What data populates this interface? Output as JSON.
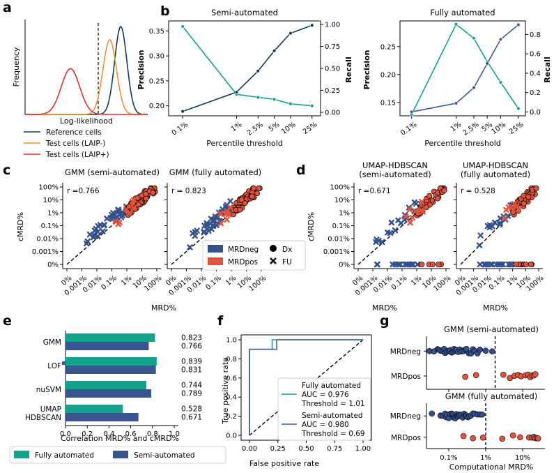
{
  "colors": {
    "teal": "#14a08a",
    "navy": "#0f3c4f",
    "slate": "#3f5a8f",
    "orange": "#f0902e",
    "red": "#e0302e",
    "mrdneg": "#34508a",
    "mrdpos": "#e2523c",
    "bar_fully": "#11a389",
    "bar_semi": "#3b5590"
  },
  "panel_labels": {
    "a": "a",
    "b": "b",
    "c": "c",
    "d": "d",
    "e": "e",
    "f": "f",
    "g": "g"
  },
  "chart_data": [
    {
      "id": "a",
      "type": "line",
      "ylabel": "Frequency",
      "xlabel": "Log-likelihood",
      "description_threshold": "dashed vertical line",
      "series": [
        {
          "name": "Reference cells",
          "color_key": "navy",
          "mean": 0.78,
          "sd": 0.05
        },
        {
          "name": "Test cells (LAIP-)",
          "color_key": "orange",
          "mean": 0.69,
          "sd": 0.055
        },
        {
          "name": "Test cells (LAIP+)",
          "color_key": "red",
          "mean": 0.37,
          "sd": 0.075
        }
      ]
    },
    {
      "id": "b1",
      "type": "line",
      "title": "Semi-automated",
      "xlabel": "Percentile threshold",
      "categories": [
        "0.1%",
        "1%",
        "2.5%",
        "5%",
        "10%",
        "25%"
      ],
      "x_positions_log": [
        0.1,
        1,
        2.5,
        5,
        10,
        25
      ],
      "y_left_label": "Precision",
      "y_left_ticks": [
        "0.20",
        "0.25",
        "0.30",
        "0.35"
      ],
      "y_left_lim": [
        0.18,
        0.37
      ],
      "y_right_label": "Recall",
      "y_right_ticks": [
        "0.00",
        "0.25",
        "0.50",
        "0.75",
        "1.00"
      ],
      "y_right_lim": [
        -0.04,
        1.04
      ],
      "series": [
        {
          "name": "Precision",
          "axis": "left",
          "color_key": "teal",
          "values": [
            0.359,
            0.223,
            0.217,
            0.213,
            0.204,
            0.2
          ]
        },
        {
          "name": "Recall",
          "axis": "right",
          "color_key": "navy",
          "values": [
            0.01,
            0.23,
            0.47,
            0.7,
            0.9,
            0.99
          ]
        }
      ]
    },
    {
      "id": "b2",
      "type": "line",
      "title": "Fully automated",
      "xlabel": "Percentile threshold",
      "categories": [
        "0.1%",
        "1%",
        "2.5%",
        "5%",
        "10%",
        "25%"
      ],
      "x_positions_log": [
        0.1,
        1,
        2.5,
        5,
        10,
        25
      ],
      "y_left_label": "Precision",
      "y_left_ticks": [
        "0.15",
        "0.20",
        "0.25"
      ],
      "y_left_lim": [
        0.126,
        0.296
      ],
      "y_right_label": "Recall",
      "y_right_ticks": [
        "0.0",
        "0.2",
        "0.4",
        "0.6",
        "0.8"
      ],
      "y_right_lim": [
        -0.04,
        0.94
      ],
      "series": [
        {
          "name": "Precision",
          "axis": "left",
          "color_key": "teal",
          "values": [
            0.128,
            0.29,
            0.265,
            0.223,
            0.186,
            0.139
          ]
        },
        {
          "name": "Recall",
          "axis": "right",
          "color_key": "slate",
          "values": [
            0.0,
            0.09,
            0.25,
            0.5,
            0.75,
            0.9
          ]
        }
      ]
    },
    {
      "id": "c",
      "type": "scatter",
      "xlabel": "MRD%",
      "ylabel": "cMRD%",
      "tick_labels": [
        "0%",
        "0.001%",
        "0.01%",
        "0.1%",
        "1%",
        "10%",
        "100%"
      ],
      "subplots": [
        {
          "title": "GMM (semi-automated)",
          "r_text": "r =0.766",
          "seed": 11,
          "zero_row": false
        },
        {
          "title": "GMM (fully automated)",
          "r_text": "r = 0.823",
          "seed": 23,
          "zero_row": false
        }
      ],
      "legend": {
        "color_items": [
          {
            "label": "MRDneg",
            "color_key": "mrdneg"
          },
          {
            "label": "MRDpos",
            "color_key": "mrdpos"
          }
        ],
        "marker_items": [
          {
            "label": "Dx",
            "marker": "circle"
          },
          {
            "label": "FU",
            "marker": "x"
          }
        ]
      }
    },
    {
      "id": "d",
      "type": "scatter",
      "xlabel": "MRD%",
      "ylabel": "cMRD%",
      "tick_labels": [
        "0%",
        "0.001%",
        "0.01%",
        "0.1%",
        "1%",
        "10%",
        "100%"
      ],
      "subplots": [
        {
          "title_line1": "UMAP-HDBSCAN",
          "title_line2": "(semi-automated)",
          "r_text": "r =0.671",
          "seed": 37,
          "zero_row": true
        },
        {
          "title_line1": "UMAP-HDBSCAN",
          "title_line2": "(fully automated)",
          "r_text": "r = 0.528",
          "seed": 51,
          "zero_row": true
        }
      ]
    },
    {
      "id": "e",
      "type": "bar",
      "orientation": "horizontal",
      "xlabel": "Correlation MRD% and cMRD%",
      "x_ticks": [
        "0.0",
        "0.2",
        "0.4",
        "0.6",
        "0.8",
        "1.0"
      ],
      "xlim": [
        0,
        1.0
      ],
      "categories": [
        "GMM",
        "LOF",
        "nuSVM",
        "UMAP\nHDBSCAN"
      ],
      "category_lines": [
        [
          "GMM"
        ],
        [
          "LOF"
        ],
        [
          "nuSVM"
        ],
        [
          "UMAP",
          "HDBSCAN"
        ]
      ],
      "series": [
        {
          "name": "Fully automated",
          "color_key": "bar_fully",
          "values": [
            0.823,
            0.839,
            0.744,
            0.528
          ],
          "labels": [
            "0.823",
            "0.839",
            "0.744",
            "0.528"
          ]
        },
        {
          "name": "Semi-automated",
          "color_key": "bar_semi",
          "values": [
            0.766,
            0.831,
            0.789,
            0.671
          ],
          "labels": [
            "0.766",
            "0.831",
            "0.789",
            "0.671"
          ]
        }
      ],
      "legend": [
        "Fully automated",
        "Semi-automated"
      ]
    },
    {
      "id": "f",
      "type": "line",
      "xlabel": "False positive rate",
      "ylabel": "True positive rate",
      "ticks": [
        "0.00",
        "0.25",
        "0.50",
        "0.75",
        "1.00"
      ],
      "y_ticks": [
        "0.0",
        "0.2",
        "0.4",
        "0.6",
        "0.8",
        "1.0"
      ],
      "series": [
        {
          "name": "Fully automated",
          "color_key": "teal",
          "auc_text": "AUC = 0.976",
          "threshold_text": "Threshold = 1.01",
          "points": [
            [
              0,
              0
            ],
            [
              0,
              0.9
            ],
            [
              0.2,
              0.9
            ],
            [
              0.2,
              1.0
            ],
            [
              1.0,
              1.0
            ]
          ]
        },
        {
          "name": "Semi-automated",
          "color_key": "slate",
          "auc_text": "AUC = 0.980",
          "threshold_text": "Threshold = 0.69",
          "points": [
            [
              0,
              0
            ],
            [
              0,
              0.9
            ],
            [
              0.24,
              0.9
            ],
            [
              0.24,
              1.0
            ],
            [
              1.0,
              1.0
            ]
          ]
        }
      ],
      "legend_lines": {
        "fully": [
          "Fully automated",
          "AUC = 0.976",
          "Threshold = 1.01"
        ],
        "semi": [
          "Semi-automated",
          "AUC = 0.980",
          "Threshold = 0.69"
        ]
      }
    },
    {
      "id": "g",
      "type": "scatter",
      "xlabel": "Computational MRD%",
      "x_ticks": [
        "0.1%",
        "1%",
        "10%"
      ],
      "x_tick_values": [
        0.1,
        1,
        10
      ],
      "xlim_log": [
        0.025,
        40
      ],
      "categories": [
        "MRDneg",
        "MRDpos"
      ],
      "subplots": [
        {
          "title": "GMM (semi-automated)",
          "threshold": 1.8,
          "neg": [
            0.03,
            0.04,
            0.05,
            0.055,
            0.06,
            0.07,
            0.075,
            0.08,
            0.09,
            0.1,
            0.11,
            0.12,
            0.13,
            0.14,
            0.15,
            0.16,
            0.18,
            0.2,
            0.22,
            0.25,
            0.28,
            0.3,
            0.35,
            0.4,
            0.45,
            0.5,
            0.6,
            0.7,
            1.0,
            1.5
          ],
          "pos": [
            0.28,
            0.55,
            3.0,
            4.5,
            6,
            7.5,
            9,
            12,
            14,
            16,
            18,
            20,
            22
          ]
        },
        {
          "title": "GMM (fully automated)",
          "threshold": 1.0,
          "neg": [
            0.035,
            0.06,
            0.07,
            0.08,
            0.085,
            0.09,
            0.1,
            0.11,
            0.12,
            0.13,
            0.14,
            0.15,
            0.16,
            0.17,
            0.18,
            0.19,
            0.2,
            0.22,
            0.24,
            0.26,
            0.28,
            0.3,
            0.33,
            0.36,
            0.4,
            0.45,
            0.5,
            0.6,
            0.7,
            0.8
          ],
          "pos": [
            0.25,
            0.45,
            0.85,
            2.8,
            5.5,
            8.5,
            15,
            18,
            20,
            22,
            24,
            26
          ]
        }
      ]
    }
  ]
}
